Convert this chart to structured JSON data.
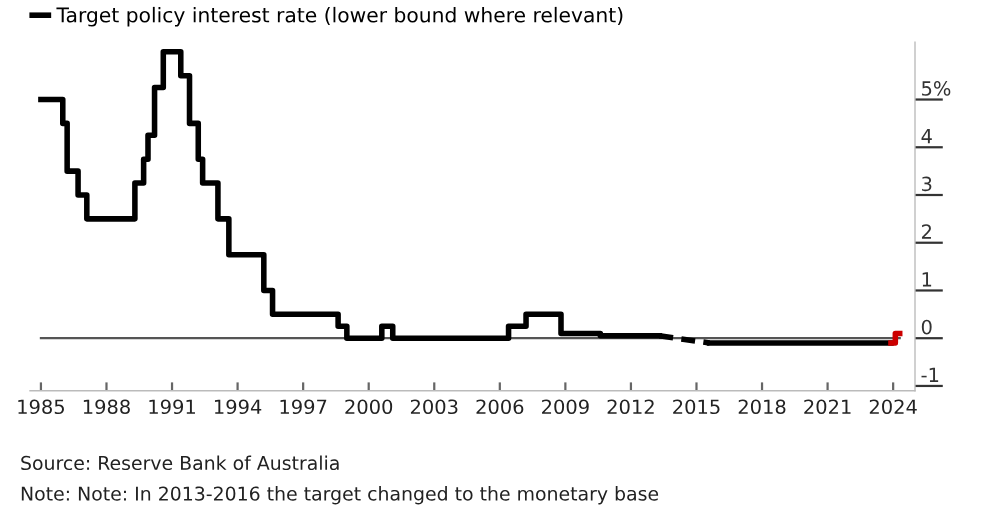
{
  "chart_data": {
    "type": "step",
    "legend": "top left",
    "grid": false,
    "series": [
      {
        "name": "Target policy interest rate (lower bound where relevant)",
        "color": "#000000",
        "line_style": "solid",
        "x": [
          1985.0,
          1986.0,
          1986.2,
          1986.7,
          1987.1,
          1989.3,
          1989.7,
          1989.9,
          1990.2,
          1990.6,
          1991.4,
          1991.8,
          1992.2,
          1992.4,
          1993.1,
          1993.6,
          1995.2,
          1995.6,
          1998.6,
          1999.0,
          2000.6,
          2001.1,
          2006.4,
          2007.2,
          2008.8,
          2010.6,
          2013.3
        ],
        "values": [
          5.0,
          4.5,
          3.5,
          3.0,
          2.5,
          3.25,
          3.75,
          4.25,
          5.25,
          6.0,
          5.5,
          4.5,
          3.75,
          3.25,
          2.5,
          1.75,
          1.0,
          0.5,
          0.25,
          0.0,
          0.25,
          0.0,
          0.25,
          0.5,
          0.1,
          0.05,
          0.05
        ]
      },
      {
        "type": "line",
        "color": "#000000",
        "line_style": "dashed",
        "x": [
          2013.3,
          2015.6
        ],
        "values": [
          0.05,
          -0.1
        ]
      },
      {
        "color": "#000000",
        "line_style": "solid",
        "x": [
          2015.6,
          2023.9
        ],
        "values": [
          -0.1,
          -0.1
        ]
      },
      {
        "color": "#cc0000",
        "line_style": "solid",
        "x": [
          2023.9,
          2024.1,
          2024.3
        ],
        "values": [
          -0.1,
          0.1,
          0.1
        ]
      }
    ],
    "xlim": [
      1984.5,
      2025
    ],
    "ylim": [
      -1.1,
      6.2
    ],
    "xticks": [
      1985,
      1988,
      1991,
      1994,
      1997,
      2000,
      2003,
      2006,
      2009,
      2012,
      2015,
      2018,
      2021,
      2024
    ],
    "yticks": [
      {
        "value": -1,
        "label": "-1"
      },
      0,
      1,
      2,
      3,
      4,
      {
        "value": 5,
        "label": "5%"
      }
    ],
    "ref_lines": [
      {
        "axis": "y",
        "value": 0,
        "color": "#555555"
      }
    ],
    "annotations": [
      "Source: Reserve Bank of Australia",
      "Note: Note: In 2013-2016 the target changed to the monetary base"
    ]
  }
}
